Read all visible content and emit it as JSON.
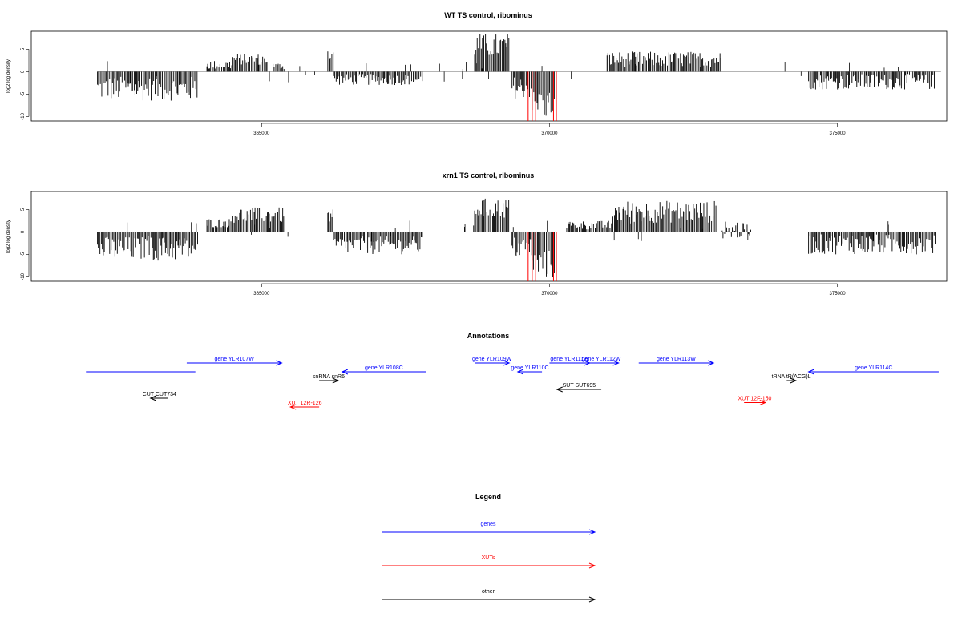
{
  "panels": [
    {
      "id": "wt",
      "title": "WT TS control, ribominus",
      "ylabel": "log2 log density",
      "yticks": [
        -10,
        -5,
        0,
        5
      ],
      "xticks": [
        365000,
        370000,
        375000
      ]
    },
    {
      "id": "xrn1",
      "title": "xrn1 TS control, ribominus",
      "ylabel": "log2 log density",
      "yticks": [
        -10,
        -5,
        0,
        5
      ],
      "xticks": [
        365000,
        370000,
        375000
      ]
    }
  ],
  "annotations_title": "Annotations",
  "legend_title": "Legend",
  "legend": [
    {
      "label": "genes",
      "color": "#0000ff"
    },
    {
      "label": "XUTs",
      "color": "#ff0000"
    },
    {
      "label": "other",
      "color": "#000000"
    }
  ],
  "annotations": [
    {
      "label": "",
      "kind": "gene",
      "start": 361950,
      "end": 363850,
      "strand": "none",
      "row": 1
    },
    {
      "label": "gene YLR107W",
      "kind": "gene",
      "start": 363700,
      "end": 365350,
      "strand": "+",
      "row": 0
    },
    {
      "label": "snRNA snR6",
      "kind": "other",
      "start": 366000,
      "end": 366330,
      "strand": "+",
      "row": 2
    },
    {
      "label": "gene YLR108C",
      "kind": "gene",
      "start": 366400,
      "end": 367850,
      "strand": "-",
      "row": 1
    },
    {
      "label": "gene YLR109W",
      "kind": "gene",
      "start": 368700,
      "end": 369300,
      "strand": "+",
      "row": 0
    },
    {
      "label": "gene YLR110C",
      "kind": "gene",
      "start": 369450,
      "end": 369870,
      "strand": "-",
      "row": 1
    },
    {
      "label": "gene YLR111W",
      "kind": "gene",
      "start": 370000,
      "end": 370700,
      "strand": "+",
      "row": 0
    },
    {
      "label": "gene YLR112W",
      "kind": "gene",
      "start": 370600,
      "end": 371200,
      "strand": "+",
      "row": 0
    },
    {
      "label": "gene YLR113W",
      "kind": "gene",
      "start": 371550,
      "end": 372850,
      "strand": "+",
      "row": 0
    },
    {
      "label": "SUT SUT695",
      "kind": "other",
      "start": 370130,
      "end": 370900,
      "strand": "-",
      "row": 3
    },
    {
      "label": "tRNA tR(ACG)L",
      "kind": "other",
      "start": 374120,
      "end": 374280,
      "strand": "+",
      "row": 2
    },
    {
      "label": "gene YLR114C",
      "kind": "gene",
      "start": 374500,
      "end": 376760,
      "strand": "-",
      "row": 1
    },
    {
      "label": "CUT CUT734",
      "kind": "other",
      "start": 363070,
      "end": 363380,
      "strand": "-",
      "row": 4
    },
    {
      "label": "XUT 12R-126",
      "kind": "xut",
      "start": 365500,
      "end": 366000,
      "strand": "-",
      "row": 5
    },
    {
      "label": "XUT 12F-150",
      "kind": "xut",
      "start": 373380,
      "end": 373750,
      "strand": "+",
      "row": 4.5
    }
  ],
  "chart_data": [
    {
      "type": "bar",
      "title": "WT TS control, ribominus",
      "ylabel": "log2 log density",
      "xlim": [
        361000,
        376900
      ],
      "ylim": [
        -11,
        9
      ],
      "segments": [
        {
          "start": 362150,
          "end": 363900,
          "min": -6.5,
          "max": -1,
          "color": "#000000"
        },
        {
          "start": 364050,
          "end": 364500,
          "min": 0.5,
          "max": 2.5,
          "color": "#000000"
        },
        {
          "start": 364500,
          "end": 365100,
          "min": 1.5,
          "max": 4,
          "color": "#000000"
        },
        {
          "start": 365200,
          "end": 365400,
          "min": 0.5,
          "max": 2,
          "color": "#000000"
        },
        {
          "start": 366150,
          "end": 366250,
          "min": 2,
          "max": 6,
          "color": "#000000"
        },
        {
          "start": 366250,
          "end": 367800,
          "min": -3,
          "max": -0.5,
          "color": "#000000"
        },
        {
          "start": 368700,
          "end": 369300,
          "min": 3,
          "max": 8.5,
          "color": "#000000"
        },
        {
          "start": 369350,
          "end": 369700,
          "min": -6,
          "max": -1,
          "color": "#000000"
        },
        {
          "start": 369700,
          "end": 370100,
          "min": -10.5,
          "max": -4,
          "color": "#000000"
        },
        {
          "start": 371000,
          "end": 373000,
          "min": 1,
          "max": 4.5,
          "color": "#000000"
        },
        {
          "start": 374500,
          "end": 376700,
          "min": -4,
          "max": -0.5,
          "color": "#000000"
        }
      ],
      "red_bars": [
        369630,
        369700,
        369760,
        370070,
        370120
      ],
      "red_min": -11
    },
    {
      "type": "bar",
      "title": "xrn1 TS control, ribominus",
      "ylabel": "log2 log density",
      "xlim": [
        361000,
        376900
      ],
      "ylim": [
        -11,
        9
      ],
      "segments": [
        {
          "start": 362150,
          "end": 363900,
          "min": -6.5,
          "max": -1,
          "color": "#000000"
        },
        {
          "start": 364050,
          "end": 364500,
          "min": 1,
          "max": 3,
          "color": "#000000"
        },
        {
          "start": 364500,
          "end": 365400,
          "min": 2,
          "max": 5.5,
          "color": "#000000"
        },
        {
          "start": 366150,
          "end": 366250,
          "min": 2,
          "max": 5,
          "color": "#000000"
        },
        {
          "start": 366250,
          "end": 367800,
          "min": -5,
          "max": -1,
          "color": "#000000"
        },
        {
          "start": 368700,
          "end": 369300,
          "min": 3,
          "max": 7.5,
          "color": "#000000"
        },
        {
          "start": 369350,
          "end": 369700,
          "min": -6,
          "max": -1,
          "color": "#000000"
        },
        {
          "start": 369700,
          "end": 370100,
          "min": -10.5,
          "max": -4,
          "color": "#000000"
        },
        {
          "start": 370300,
          "end": 371100,
          "min": 0.5,
          "max": 2.5,
          "color": "#000000"
        },
        {
          "start": 371100,
          "end": 372900,
          "min": 2,
          "max": 7,
          "color": "#000000"
        },
        {
          "start": 373000,
          "end": 373500,
          "min": -1.5,
          "max": 2,
          "color": "#000000"
        },
        {
          "start": 374500,
          "end": 376700,
          "min": -5,
          "max": -0.5,
          "color": "#000000"
        }
      ],
      "red_bars": [
        369630,
        369700,
        369760,
        370070,
        370120
      ],
      "red_min": -11
    }
  ]
}
